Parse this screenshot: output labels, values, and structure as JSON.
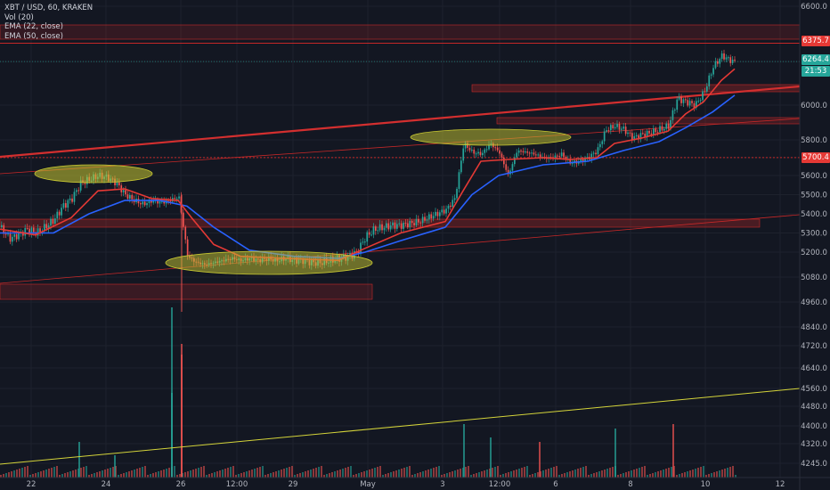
{
  "legend": {
    "symbol": "XBT / USD, 60, KRAKEN",
    "vol": "Vol (20)",
    "ema22": "EMA (22, close)",
    "ema50": "EMA (50, close)"
  },
  "colors": {
    "background": "#131722",
    "grid": "#1e222d",
    "up": "#26a69a",
    "down": "#ef5350",
    "ema22": "#e53935",
    "ema50": "#2962ff",
    "zone": "#c62828",
    "ellipse": "#c8c832",
    "trend_yellow": "#d4d43a"
  },
  "price_labels": {
    "resistance": "6375.7",
    "last": "6264.4",
    "countdown": "21:53",
    "support": "5700.4"
  },
  "chart_data": {
    "type": "candlestick",
    "title": "XBT / USD, 60, KRAKEN",
    "interval": "60",
    "exchange": "KRAKEN",
    "y_ticks": [
      6600.0,
      6375.7,
      6264.4,
      6000.0,
      5800.0,
      5700.4,
      5600.0,
      5500.0,
      5400.0,
      5300.0,
      5200.0,
      5080.0,
      4960.0,
      4840.0,
      4720.0,
      4640.0,
      4560.0,
      4480.0,
      4400.0,
      4320.0,
      4245.0
    ],
    "y_tick_labels": [
      "6600.0",
      "6375.7",
      "6264.4",
      "6000.0",
      "5800.0",
      "5700.4",
      "5600.0",
      "5500.0",
      "5400.0",
      "5300.0",
      "5200.0",
      "5080.0",
      "4960.0",
      "4840.0",
      "4720.0",
      "4640.0",
      "4560.0",
      "4480.0",
      "4400.0",
      "4320.0",
      "4245.0"
    ],
    "x_tick_labels": [
      "22",
      "24",
      "26",
      "12:00",
      "29",
      "May",
      "3",
      "12:00",
      "6",
      "8",
      "10",
      "12"
    ],
    "price_path": [
      [
        0,
        5330
      ],
      [
        10,
        5270
      ],
      [
        20,
        5290
      ],
      [
        30,
        5320
      ],
      [
        40,
        5300
      ],
      [
        50,
        5330
      ],
      [
        60,
        5370
      ],
      [
        70,
        5440
      ],
      [
        80,
        5480
      ],
      [
        90,
        5560
      ],
      [
        100,
        5580
      ],
      [
        110,
        5600
      ],
      [
        120,
        5590
      ],
      [
        130,
        5560
      ],
      [
        140,
        5500
      ],
      [
        150,
        5470
      ],
      [
        160,
        5450
      ],
      [
        170,
        5470
      ],
      [
        180,
        5460
      ],
      [
        190,
        5470
      ],
      [
        200,
        5490
      ],
      [
        210,
        5180
      ],
      [
        220,
        5150
      ],
      [
        230,
        5140
      ],
      [
        240,
        5150
      ],
      [
        250,
        5160
      ],
      [
        260,
        5170
      ],
      [
        270,
        5160
      ],
      [
        280,
        5170
      ],
      [
        290,
        5160
      ],
      [
        300,
        5170
      ],
      [
        310,
        5160
      ],
      [
        320,
        5170
      ],
      [
        330,
        5160
      ],
      [
        340,
        5160
      ],
      [
        350,
        5150
      ],
      [
        360,
        5150
      ],
      [
        370,
        5160
      ],
      [
        380,
        5170
      ],
      [
        390,
        5180
      ],
      [
        400,
        5200
      ],
      [
        410,
        5280
      ],
      [
        420,
        5320
      ],
      [
        430,
        5330
      ],
      [
        440,
        5340
      ],
      [
        450,
        5340
      ],
      [
        460,
        5350
      ],
      [
        470,
        5360
      ],
      [
        480,
        5380
      ],
      [
        490,
        5400
      ],
      [
        500,
        5420
      ],
      [
        510,
        5480
      ],
      [
        515,
        5620
      ],
      [
        520,
        5780
      ],
      [
        530,
        5730
      ],
      [
        540,
        5720
      ],
      [
        550,
        5780
      ],
      [
        560,
        5730
      ],
      [
        570,
        5600
      ],
      [
        580,
        5740
      ],
      [
        590,
        5730
      ],
      [
        600,
        5720
      ],
      [
        610,
        5700
      ],
      [
        620,
        5700
      ],
      [
        630,
        5720
      ],
      [
        640,
        5670
      ],
      [
        650,
        5680
      ],
      [
        660,
        5700
      ],
      [
        670,
        5740
      ],
      [
        680,
        5860
      ],
      [
        690,
        5880
      ],
      [
        700,
        5860
      ],
      [
        710,
        5810
      ],
      [
        720,
        5830
      ],
      [
        730,
        5840
      ],
      [
        740,
        5860
      ],
      [
        750,
        5880
      ],
      [
        760,
        6040
      ],
      [
        770,
        6020
      ],
      [
        780,
        6000
      ],
      [
        790,
        6080
      ],
      [
        800,
        6230
      ],
      [
        810,
        6300
      ],
      [
        820,
        6270
      ],
      [
        825,
        6264.4
      ]
    ],
    "ema22_path": [
      [
        0,
        5320
      ],
      [
        40,
        5290
      ],
      [
        80,
        5380
      ],
      [
        110,
        5520
      ],
      [
        140,
        5530
      ],
      [
        170,
        5480
      ],
      [
        200,
        5470
      ],
      [
        215,
        5380
      ],
      [
        240,
        5240
      ],
      [
        270,
        5180
      ],
      [
        320,
        5170
      ],
      [
        380,
        5160
      ],
      [
        410,
        5220
      ],
      [
        450,
        5300
      ],
      [
        500,
        5360
      ],
      [
        520,
        5520
      ],
      [
        540,
        5680
      ],
      [
        570,
        5690
      ],
      [
        610,
        5700
      ],
      [
        640,
        5690
      ],
      [
        670,
        5700
      ],
      [
        690,
        5780
      ],
      [
        720,
        5810
      ],
      [
        750,
        5850
      ],
      [
        770,
        5950
      ],
      [
        790,
        6020
      ],
      [
        810,
        6150
      ],
      [
        825,
        6220
      ]
    ],
    "ema50_path": [
      [
        0,
        5300
      ],
      [
        60,
        5300
      ],
      [
        100,
        5400
      ],
      [
        140,
        5470
      ],
      [
        180,
        5470
      ],
      [
        210,
        5440
      ],
      [
        240,
        5330
      ],
      [
        280,
        5210
      ],
      [
        330,
        5180
      ],
      [
        380,
        5170
      ],
      [
        410,
        5200
      ],
      [
        450,
        5260
      ],
      [
        500,
        5330
      ],
      [
        530,
        5500
      ],
      [
        560,
        5600
      ],
      [
        610,
        5660
      ],
      [
        660,
        5680
      ],
      [
        700,
        5740
      ],
      [
        740,
        5790
      ],
      [
        770,
        5870
      ],
      [
        800,
        5960
      ],
      [
        825,
        6060
      ]
    ],
    "volume": {
      "spikes": [
        [
          88,
          40
        ],
        [
          128,
          25
        ],
        [
          192,
          95
        ],
        [
          203,
          150
        ],
        [
          520,
          60
        ],
        [
          550,
          45
        ],
        [
          605,
          40
        ],
        [
          690,
          55
        ],
        [
          755,
          60
        ]
      ],
      "baseline_height": 10
    },
    "resistance_level": 6375.7,
    "support_level": 5700.4,
    "grid": true
  }
}
